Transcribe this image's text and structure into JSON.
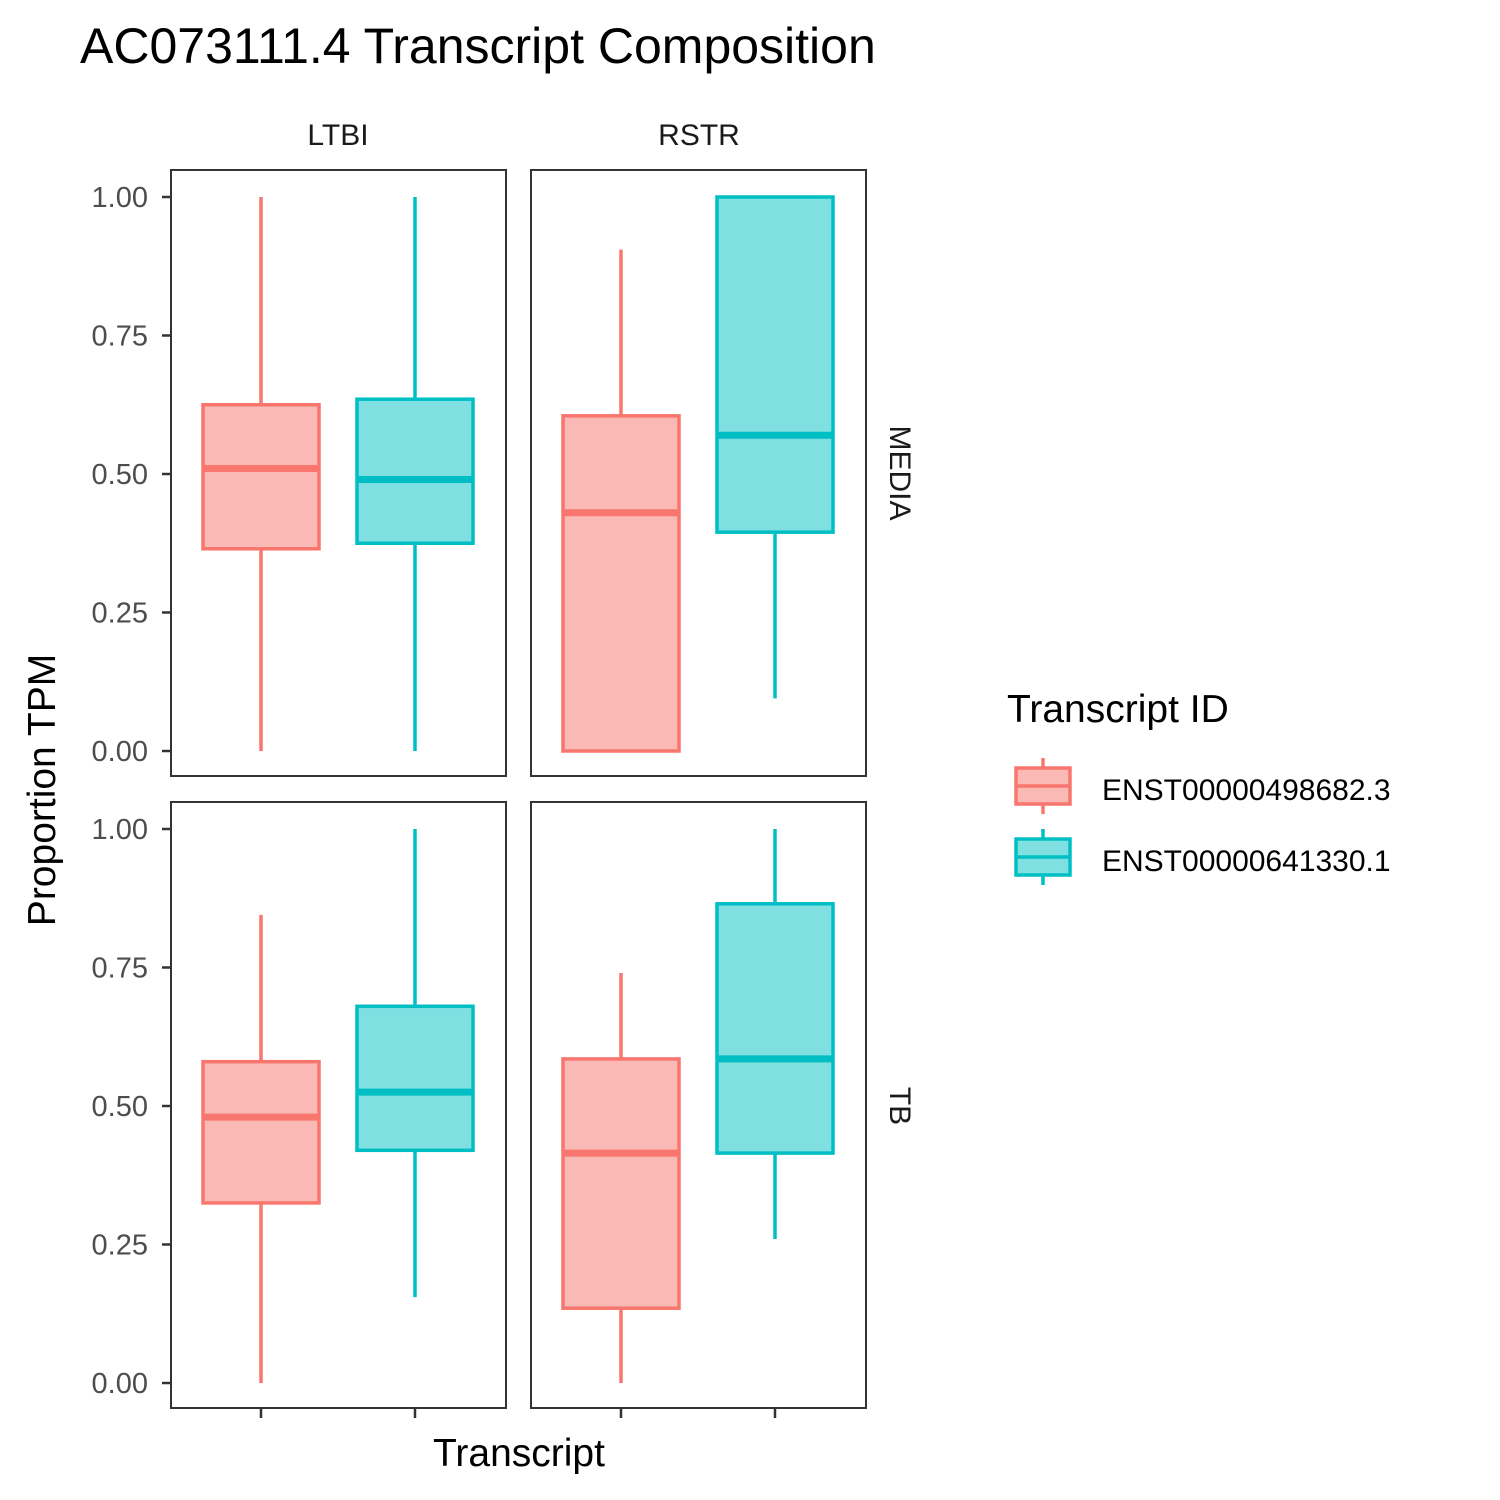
{
  "chart_data": {
    "type": "boxplot",
    "title": "AC073111.4 Transcript Composition",
    "xlabel": "Transcript",
    "ylabel": "Proportion TPM",
    "ylim": [
      0,
      1
    ],
    "yticks": [
      "0.00",
      "0.25",
      "0.50",
      "0.75",
      "1.00"
    ],
    "ytick_values": [
      0,
      0.25,
      0.5,
      0.75,
      1.0
    ],
    "facet_cols": [
      "LTBI",
      "RSTR"
    ],
    "facet_rows": [
      "MEDIA",
      "TB"
    ],
    "legend": {
      "title": "Transcript ID",
      "position": "right",
      "entries": [
        "ENST00000498682.3",
        "ENST00000641330.1"
      ]
    },
    "colors": {
      "ENST00000498682.3": {
        "line": "#F8766D",
        "fill": "#FBB9B5"
      },
      "ENST00000641330.1": {
        "line": "#00BFC4",
        "fill": "#80DFE1"
      }
    },
    "grid": false,
    "panels": [
      {
        "col": "LTBI",
        "row": "MEDIA",
        "boxes": [
          {
            "series": "ENST00000498682.3",
            "min": 0.0,
            "q1": 0.365,
            "median": 0.51,
            "q3": 0.625,
            "max": 1.0
          },
          {
            "series": "ENST00000641330.1",
            "min": 0.0,
            "q1": 0.375,
            "median": 0.49,
            "q3": 0.635,
            "max": 1.0
          }
        ]
      },
      {
        "col": "RSTR",
        "row": "MEDIA",
        "boxes": [
          {
            "series": "ENST00000498682.3",
            "min": 0.0,
            "q1": 0.0,
            "median": 0.43,
            "q3": 0.605,
            "max": 0.905
          },
          {
            "series": "ENST00000641330.1",
            "min": 0.095,
            "q1": 0.395,
            "median": 0.57,
            "q3": 1.0,
            "max": 1.0
          }
        ]
      },
      {
        "col": "LTBI",
        "row": "TB",
        "boxes": [
          {
            "series": "ENST00000498682.3",
            "min": 0.0,
            "q1": 0.325,
            "median": 0.48,
            "q3": 0.58,
            "max": 0.845
          },
          {
            "series": "ENST00000641330.1",
            "min": 0.155,
            "q1": 0.42,
            "median": 0.525,
            "q3": 0.68,
            "max": 1.0
          }
        ]
      },
      {
        "col": "RSTR",
        "row": "TB",
        "boxes": [
          {
            "series": "ENST00000498682.3",
            "min": 0.0,
            "q1": 0.135,
            "median": 0.415,
            "q3": 0.585,
            "max": 0.74
          },
          {
            "series": "ENST00000641330.1",
            "min": 0.26,
            "q1": 0.415,
            "median": 0.585,
            "q3": 0.865,
            "max": 1.0
          }
        ]
      }
    ]
  }
}
